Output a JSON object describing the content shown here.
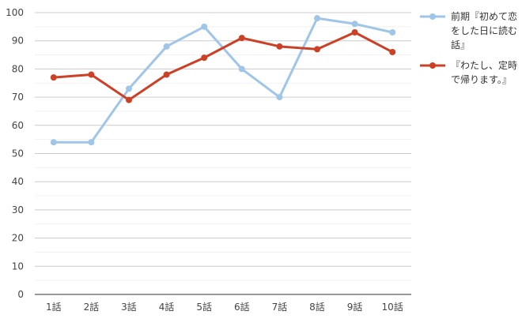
{
  "chart_data": {
    "type": "line",
    "categories": [
      "1話",
      "2話",
      "3話",
      "4話",
      "5話",
      "6話",
      "7話",
      "8話",
      "9話",
      "10話"
    ],
    "series": [
      {
        "name": "前期『初めて恋をした日に読む話』",
        "color": "#9fc5e8",
        "values": [
          54,
          54,
          73,
          88,
          95,
          80,
          70,
          98,
          96,
          93
        ]
      },
      {
        "name": "『わたし、定時で帰ります。』",
        "color": "#cc4125",
        "values": [
          77,
          78,
          69,
          78,
          84,
          91,
          88,
          87,
          93,
          86
        ]
      }
    ],
    "ylim": [
      0,
      100
    ],
    "yticks": [
      0,
      10,
      20,
      30,
      40,
      50,
      60,
      70,
      80,
      90,
      100
    ],
    "grid": true,
    "legend": "right"
  }
}
